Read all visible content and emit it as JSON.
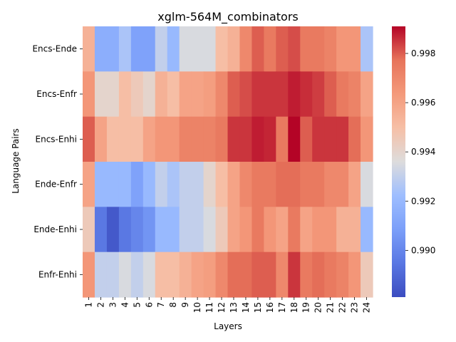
{
  "chart_data": {
    "type": "heatmap",
    "title": "xglm-564M_combinators",
    "xlabel": "Layers",
    "ylabel": "Language Pairs",
    "x_categories": [
      "1",
      "2",
      "3",
      "4",
      "5",
      "6",
      "7",
      "8",
      "9",
      "10",
      "11",
      "12",
      "13",
      "14",
      "15",
      "16",
      "17",
      "18",
      "19",
      "20",
      "21",
      "22",
      "23",
      "24"
    ],
    "y_categories": [
      "Encs-Ende",
      "Encs-Enfr",
      "Encs-Enhi",
      "Ende-Enfr",
      "Ende-Enhi",
      "Enfr-Enhi"
    ],
    "colormap": "coolwarm",
    "vmin": 0.9881,
    "vmax": 0.9991,
    "colorbar_ticks": [
      0.99,
      0.992,
      0.994,
      0.996,
      0.998
    ],
    "colorbar_tick_labels": [
      "0.990",
      "0.992",
      "0.994",
      "0.996",
      "0.998"
    ],
    "values": [
      [
        0.9955,
        0.9915,
        0.9915,
        0.9925,
        0.991,
        0.991,
        0.993,
        0.992,
        0.9935,
        0.9935,
        0.9935,
        0.995,
        0.9955,
        0.997,
        0.998,
        0.9975,
        0.998,
        0.9982,
        0.9975,
        0.9975,
        0.9972,
        0.9965,
        0.9965,
        0.9925
      ],
      [
        0.9965,
        0.994,
        0.994,
        0.995,
        0.9945,
        0.994,
        0.9955,
        0.995,
        0.996,
        0.996,
        0.9962,
        0.997,
        0.998,
        0.9982,
        0.9985,
        0.9985,
        0.9985,
        0.9988,
        0.9986,
        0.9984,
        0.998,
        0.9975,
        0.9972,
        0.996
      ],
      [
        0.998,
        0.996,
        0.995,
        0.995,
        0.995,
        0.996,
        0.9965,
        0.9965,
        0.9972,
        0.9972,
        0.9972,
        0.9975,
        0.9985,
        0.9985,
        0.9988,
        0.9987,
        0.9975,
        0.9991,
        0.998,
        0.9985,
        0.9985,
        0.9985,
        0.9978,
        0.9965
      ],
      [
        0.996,
        0.992,
        0.992,
        0.992,
        0.991,
        0.992,
        0.993,
        0.9925,
        0.993,
        0.993,
        0.994,
        0.995,
        0.996,
        0.997,
        0.9975,
        0.9975,
        0.9978,
        0.9978,
        0.9975,
        0.9975,
        0.997,
        0.997,
        0.996,
        0.9935
      ],
      [
        0.9945,
        0.9895,
        0.9885,
        0.9895,
        0.99,
        0.9905,
        0.992,
        0.992,
        0.993,
        0.993,
        0.9935,
        0.9945,
        0.996,
        0.9965,
        0.9975,
        0.9965,
        0.996,
        0.9975,
        0.996,
        0.9965,
        0.9965,
        0.9955,
        0.9955,
        0.992
      ],
      [
        0.9965,
        0.993,
        0.993,
        0.9935,
        0.993,
        0.9935,
        0.995,
        0.995,
        0.9955,
        0.996,
        0.9962,
        0.997,
        0.9978,
        0.9978,
        0.998,
        0.998,
        0.997,
        0.9985,
        0.9975,
        0.9978,
        0.9975,
        0.9972,
        0.9965,
        0.9945
      ]
    ]
  }
}
